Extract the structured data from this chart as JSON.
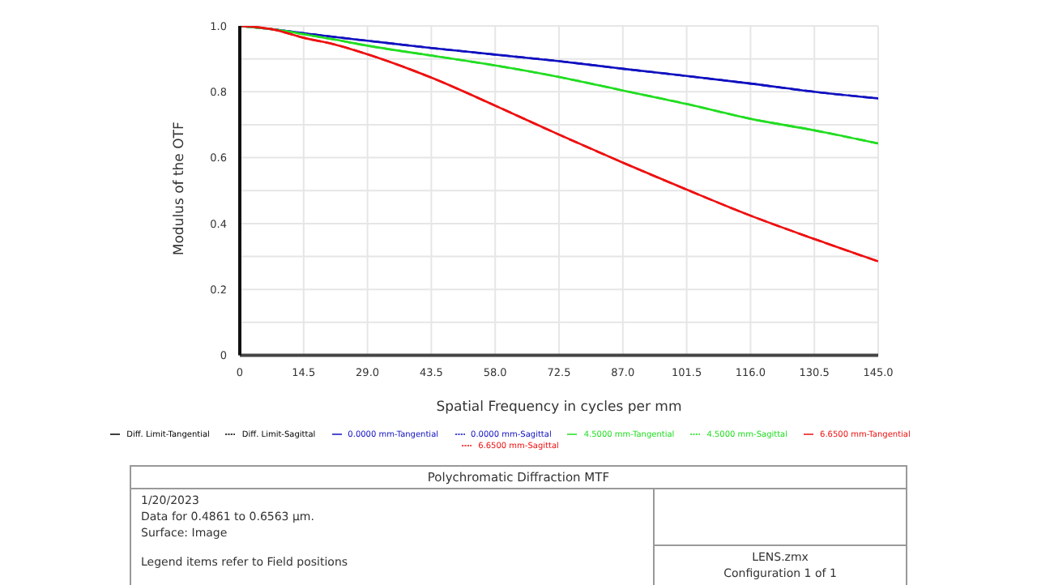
{
  "chart_data": {
    "type": "line",
    "title": "Polychromatic Diffraction MTF",
    "xlabel": "Spatial Frequency in cycles per mm",
    "ylabel": "Modulus of the OTF",
    "x": [
      0,
      7.25,
      14.5,
      21.75,
      29,
      43.5,
      58,
      72.5,
      87,
      101.5,
      116,
      130.5,
      145
    ],
    "series": [
      {
        "name": "Diff. Limit-Tangential",
        "color": "#000000",
        "line_style": "solid",
        "values": [
          null,
          null,
          null,
          null,
          null,
          null,
          null,
          null,
          null,
          null,
          null,
          null,
          null
        ]
      },
      {
        "name": "Diff. Limit-Sagittal",
        "color": "#000000",
        "line_style": "dashed",
        "values": [
          null,
          null,
          null,
          null,
          null,
          null,
          null,
          null,
          null,
          null,
          null,
          null,
          null
        ]
      },
      {
        "name": "0.0000 mm-Tangential",
        "color": "#1010c0",
        "line_style": "solid",
        "values": [
          1,
          0.99,
          0.978,
          0.966,
          0.955,
          0.933,
          0.913,
          0.893,
          0.87,
          0.848,
          0.825,
          0.8,
          0.78
        ]
      },
      {
        "name": "0.0000 mm-Sagittal",
        "color": "#1010c0",
        "line_style": "dashed",
        "values": [
          1,
          0.99,
          0.978,
          0.966,
          0.955,
          0.933,
          0.913,
          0.893,
          0.87,
          0.848,
          0.825,
          0.8,
          0.78
        ]
      },
      {
        "name": "4.5000 mm-Tangential",
        "color": "#22dd22",
        "line_style": "solid",
        "values": [
          1,
          0.99,
          0.975,
          0.958,
          0.94,
          0.91,
          0.88,
          0.845,
          0.804,
          0.763,
          0.718,
          0.683,
          0.643
        ]
      },
      {
        "name": "4.5000 mm-Sagittal",
        "color": "#22dd22",
        "line_style": "dashed",
        "values": [
          1,
          0.99,
          0.975,
          0.958,
          0.94,
          0.91,
          0.88,
          0.845,
          0.804,
          0.763,
          0.718,
          0.683,
          0.643
        ]
      },
      {
        "name": "6.6500 mm-Tangential",
        "color": "#ee1111",
        "line_style": "solid",
        "values": [
          1,
          0.99,
          0.964,
          0.943,
          0.914,
          0.843,
          0.758,
          0.67,
          0.585,
          0.503,
          0.424,
          0.353,
          0.285
        ]
      },
      {
        "name": "6.6500 mm-Sagittal",
        "color": "#ee1111",
        "line_style": "dashed",
        "values": [
          1,
          0.99,
          0.964,
          0.943,
          0.914,
          0.843,
          0.758,
          0.67,
          0.585,
          0.503,
          0.424,
          0.353,
          0.285
        ]
      }
    ],
    "xlim": [
      0,
      145
    ],
    "xticks": [
      {
        "value": 0,
        "label": "0"
      },
      {
        "value": 14.5,
        "label": "14.5"
      },
      {
        "value": 29,
        "label": "29.0"
      },
      {
        "value": 43.5,
        "label": "43.5"
      },
      {
        "value": 58,
        "label": "58.0"
      },
      {
        "value": 72.5,
        "label": "72.5"
      },
      {
        "value": 87,
        "label": "87.0"
      },
      {
        "value": 101.5,
        "label": "101.5"
      },
      {
        "value": 116,
        "label": "116.0"
      },
      {
        "value": 130.5,
        "label": "130.5"
      },
      {
        "value": 145,
        "label": "145.0"
      }
    ],
    "ylim": [
      0,
      1
    ],
    "yticks": [
      0,
      {
        "value": 0.1,
        "label": null
      },
      0.2,
      {
        "value": 0.3,
        "label": null
      },
      0.4,
      {
        "value": 0.5,
        "label": null
      },
      0.6,
      {
        "value": 0.7,
        "label": null
      },
      0.8,
      {
        "value": 0.9,
        "label": null
      },
      {
        "value": 1,
        "label": "1.0"
      }
    ],
    "grid": true,
    "legend": "bottom",
    "marker": "none",
    "annotations": [
      "1/20/2023",
      "Data for 0.4861 to 0.6563 µm.",
      "Surface: Image",
      "Legend items refer to Field positions",
      "LENS.zmx",
      "Configuration 1 of 1"
    ]
  }
}
